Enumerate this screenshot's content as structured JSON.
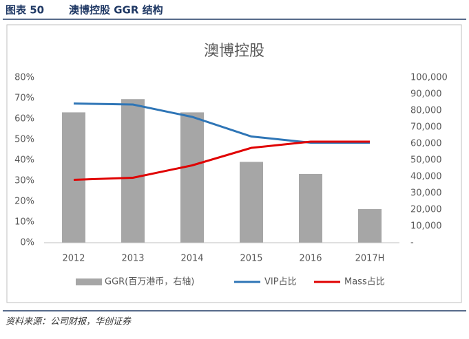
{
  "header": {
    "label": "图表 50",
    "title": "澳博控股 GGR 结构"
  },
  "footer": {
    "source": "资料来源：公司财报，华创证券"
  },
  "chart_data": {
    "type": "combo",
    "title": "澳博控股",
    "categories": [
      "2012",
      "2013",
      "2014",
      "2015",
      "2016",
      "2017H"
    ],
    "series": [
      {
        "name": "GGR(百万港币，右轴)",
        "type": "bar",
        "axis": "y2",
        "color": "#a6a6a6",
        "values": [
          79000,
          87000,
          79000,
          49000,
          41700,
          20400
        ]
      },
      {
        "name": "VIP占比",
        "type": "line",
        "color": "#2e75b6",
        "values": [
          67.5,
          67,
          61,
          51.5,
          48.5,
          48.5
        ]
      },
      {
        "name": "Mass占比",
        "type": "line",
        "color": "#e00000",
        "values": [
          30.5,
          31.5,
          37.5,
          46,
          49,
          49
        ]
      }
    ],
    "ylim": [
      0,
      80
    ],
    "yticks": [
      {
        "value": 0,
        "label": "0%"
      },
      {
        "value": 10,
        "label": "10%"
      },
      {
        "value": 20,
        "label": "20%"
      },
      {
        "value": 30,
        "label": "30%"
      },
      {
        "value": 40,
        "label": "40%"
      },
      {
        "value": 50,
        "label": "50%"
      },
      {
        "value": 60,
        "label": "60%"
      },
      {
        "value": 70,
        "label": "70%"
      },
      {
        "value": 80,
        "label": "80%"
      }
    ],
    "y2lim": [
      0,
      100000
    ],
    "y2ticks": [
      {
        "value": 0,
        "label": "-"
      },
      {
        "value": 10000,
        "label": "10,000"
      },
      {
        "value": 20000,
        "label": "20,000"
      },
      {
        "value": 30000,
        "label": "30,000"
      },
      {
        "value": 40000,
        "label": "40,000"
      },
      {
        "value": 50000,
        "label": "50,000"
      },
      {
        "value": 60000,
        "label": "60,000"
      },
      {
        "value": 70000,
        "label": "70,000"
      },
      {
        "value": 80000,
        "label": "80,000"
      },
      {
        "value": 90000,
        "label": "90,000"
      },
      {
        "value": 100000,
        "label": "100,000"
      }
    ],
    "grid": false,
    "legend": "bottom"
  }
}
